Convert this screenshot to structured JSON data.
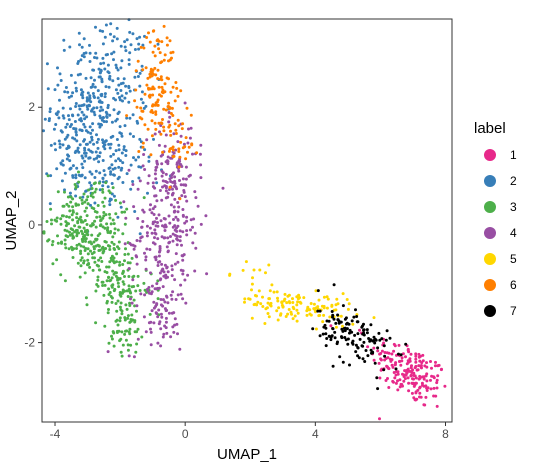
{
  "chart_data": {
    "type": "scatter",
    "title": "",
    "xlabel": "UMAP_1",
    "ylabel": "UMAP_2",
    "xlim": [
      -4.4,
      8.2
    ],
    "ylim": [
      -3.35,
      3.5
    ],
    "xticks": [
      -4,
      0,
      4,
      8
    ],
    "yticks": [
      -2,
      0,
      2
    ],
    "grid": false,
    "legend_title": "label",
    "legend_position": "right",
    "series": [
      {
        "name": "1",
        "color": "#E7298A",
        "regions": [
          [
            6.9,
            -2.5,
            0.6,
            0.3,
            -0.55,
            200
          ]
        ]
      },
      {
        "name": "2",
        "color": "#377EB8",
        "regions": [
          [
            -2.6,
            2.3,
            0.75,
            0.6,
            0.2,
            260
          ],
          [
            -3.0,
            1.4,
            0.55,
            0.55,
            0.0,
            160
          ],
          [
            -2.2,
            0.9,
            0.6,
            0.35,
            0.0,
            80
          ]
        ]
      },
      {
        "name": "3",
        "color": "#4DAF4A",
        "regions": [
          [
            -2.5,
            -0.5,
            0.75,
            0.55,
            -0.6,
            250
          ],
          [
            -3.4,
            -0.2,
            0.3,
            0.25,
            0.0,
            70
          ],
          [
            -1.9,
            -1.6,
            0.35,
            0.35,
            0.0,
            70
          ],
          [
            -2.8,
            0.3,
            0.5,
            0.25,
            0.0,
            60
          ]
        ]
      },
      {
        "name": "4",
        "color": "#984EA3",
        "regions": [
          [
            -0.6,
            -0.1,
            0.55,
            0.8,
            0.15,
            260
          ],
          [
            -0.4,
            0.9,
            0.35,
            0.45,
            0.0,
            80
          ],
          [
            -0.7,
            -1.3,
            0.25,
            0.35,
            0.0,
            50
          ]
        ]
      },
      {
        "name": "5",
        "color": "#FFD700",
        "regions": [
          [
            3.5,
            -1.4,
            0.9,
            0.15,
            -0.45,
            130
          ],
          [
            1.8,
            -0.7,
            0.4,
            0.15,
            -0.4,
            10
          ]
        ]
      },
      {
        "name": "6",
        "color": "#FF7F00",
        "regions": [
          [
            -0.9,
            2.4,
            0.3,
            0.55,
            0.25,
            130
          ],
          [
            -0.2,
            1.5,
            0.25,
            0.45,
            0.0,
            40
          ]
        ]
      },
      {
        "name": "7",
        "color": "#000000",
        "regions": [
          [
            5.2,
            -1.9,
            0.55,
            0.3,
            -0.5,
            130
          ]
        ]
      }
    ]
  }
}
